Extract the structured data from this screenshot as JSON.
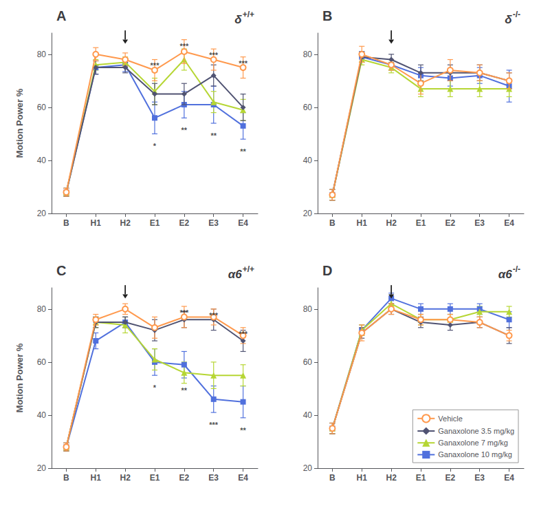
{
  "chart_data": [
    {
      "type": "line",
      "panel_label": "A",
      "title": "δ",
      "subtitle": "+/+",
      "categories": [
        "B",
        "H1",
        "H2",
        "E1",
        "E2",
        "E3",
        "E4"
      ],
      "ylim": [
        20,
        88
      ],
      "yticks": [
        20,
        40,
        60,
        80
      ],
      "ylabel": "Motion Power %",
      "grid": false,
      "series": [
        {
          "name": "Ganaxolone 10 mg/kg",
          "marker": "square",
          "values": [
            28,
            75,
            76,
            56,
            61,
            61,
            53
          ],
          "yerr": [
            1.5,
            2.5,
            2.5,
            6,
            5,
            7,
            5
          ]
        },
        {
          "name": "Ganaxolone 7 mg/kg",
          "marker": "triangle",
          "values": [
            28,
            76,
            77,
            66,
            78,
            62,
            59
          ],
          "yerr": [
            1.5,
            2,
            2,
            5,
            4,
            4,
            4
          ]
        },
        {
          "name": "Ganaxolone 3.5 mg/kg",
          "marker": "diamond",
          "values": [
            28,
            75,
            75,
            65,
            65,
            72,
            60
          ],
          "yerr": [
            1.5,
            2.5,
            2,
            4,
            4,
            4,
            5
          ]
        },
        {
          "name": "Vehicle",
          "marker": "open_circle",
          "values": [
            28,
            80,
            78,
            74,
            81,
            78,
            75
          ],
          "yerr": [
            1.5,
            2.5,
            2.5,
            4,
            4.5,
            4,
            4
          ]
        }
      ],
      "annotations": [
        {
          "text": "*",
          "x": "E1",
          "y": 47,
          "position": "below"
        },
        {
          "text": "**",
          "x": "E2",
          "y": 53,
          "position": "below"
        },
        {
          "text": "**",
          "x": "E3",
          "y": 51,
          "position": "below"
        },
        {
          "text": "**",
          "x": "E4",
          "y": 45,
          "position": "below"
        },
        {
          "text": "***",
          "x": "E1",
          "y": 74,
          "position": "above"
        },
        {
          "text": "***",
          "x": "E2",
          "y": 81.5,
          "position": "above"
        },
        {
          "text": "***",
          "x": "E3",
          "y": 78,
          "position": "above"
        },
        {
          "text": "***",
          "x": "E4",
          "y": 75,
          "position": "above"
        }
      ],
      "arrow": {
        "x": "H2",
        "from": 89,
        "to": 84
      }
    },
    {
      "type": "line",
      "panel_label": "B",
      "title": "δ",
      "subtitle": "-/-",
      "categories": [
        "B",
        "H1",
        "H2",
        "E1",
        "E2",
        "E3",
        "E4"
      ],
      "ylim": [
        20,
        88
      ],
      "yticks": [
        20,
        40,
        60,
        80
      ],
      "grid": false,
      "series": [
        {
          "name": "Ganaxolone 10 mg/kg",
          "marker": "square",
          "values": [
            27,
            79,
            76,
            72,
            71,
            72,
            68
          ],
          "yerr": [
            2,
            2,
            2,
            3,
            3,
            3,
            6
          ]
        },
        {
          "name": "Ganaxolone 7 mg/kg",
          "marker": "triangle",
          "values": [
            27,
            78,
            75,
            67,
            67,
            67,
            67
          ],
          "yerr": [
            2,
            2,
            2,
            3,
            3,
            3,
            3
          ]
        },
        {
          "name": "Ganaxolone 3.5 mg/kg",
          "marker": "diamond",
          "values": [
            27,
            79,
            78,
            73,
            73,
            73,
            70
          ],
          "yerr": [
            2,
            2,
            2,
            3,
            3,
            3,
            3
          ]
        },
        {
          "name": "Vehicle",
          "marker": "open_circle",
          "values": [
            27,
            80,
            76,
            69,
            74,
            73,
            70
          ],
          "yerr": [
            2,
            3,
            2,
            4,
            4,
            3,
            3
          ]
        }
      ],
      "annotations": [],
      "arrow": {
        "x": "H2",
        "from": 89,
        "to": 84
      }
    },
    {
      "type": "line",
      "panel_label": "C",
      "title": "α6",
      "subtitle": "+/+",
      "categories": [
        "B",
        "H1",
        "H2",
        "E1",
        "E2",
        "E3",
        "E4"
      ],
      "ylim": [
        20,
        88
      ],
      "yticks": [
        20,
        40,
        60,
        80
      ],
      "ylabel": "Motion Power %",
      "grid": false,
      "series": [
        {
          "name": "Ganaxolone 10 mg/kg",
          "marker": "square",
          "values": [
            28,
            68,
            75,
            60,
            59,
            46,
            45
          ],
          "yerr": [
            1.5,
            3,
            2,
            5,
            5,
            5,
            6
          ]
        },
        {
          "name": "Ganaxolone 7 mg/kg",
          "marker": "triangle",
          "values": [
            28,
            75,
            74,
            61,
            56,
            55,
            55
          ],
          "yerr": [
            1.5,
            2,
            3,
            4,
            4,
            5,
            4
          ]
        },
        {
          "name": "Ganaxolone 3.5 mg/kg",
          "marker": "diamond",
          "values": [
            28,
            75,
            75,
            72,
            76,
            76,
            68
          ],
          "yerr": [
            1.5,
            2,
            2,
            4,
            3,
            4,
            4
          ]
        },
        {
          "name": "Vehicle",
          "marker": "open_circle",
          "values": [
            28,
            76,
            80,
            73,
            77,
            77,
            70
          ],
          "yerr": [
            1.5,
            2,
            2,
            4,
            4,
            3,
            3
          ]
        }
      ],
      "annotations": [
        {
          "text": "*",
          "x": "E1",
          "y": 52,
          "position": "below"
        },
        {
          "text": "**",
          "x": "E2",
          "y": 51,
          "position": "below"
        },
        {
          "text": "***",
          "x": "E3",
          "y": 38,
          "position": "below"
        },
        {
          "text": "**",
          "x": "E4",
          "y": 36,
          "position": "below"
        },
        {
          "text": "***",
          "x": "E2",
          "y": 77,
          "position": "above"
        },
        {
          "text": "***",
          "x": "E3",
          "y": 76,
          "position": "above"
        },
        {
          "text": "***",
          "x": "E4",
          "y": 69,
          "position": "above"
        }
      ],
      "arrow": {
        "x": "H2",
        "from": 89,
        "to": 84
      }
    },
    {
      "type": "line",
      "panel_label": "D",
      "title": "α6",
      "subtitle": "-/-",
      "categories": [
        "B",
        "H1",
        "H2",
        "E1",
        "E2",
        "E3",
        "E4"
      ],
      "ylim": [
        20,
        88
      ],
      "yticks": [
        20,
        40,
        60,
        80
      ],
      "grid": false,
      "legend": "lower right",
      "series": [
        {
          "name": "Ganaxolone 10 mg/kg",
          "marker": "square",
          "values": [
            35,
            72,
            84,
            80,
            80,
            80,
            76
          ],
          "yerr": [
            2,
            2,
            2,
            2,
            2,
            2,
            3
          ]
        },
        {
          "name": "Ganaxolone 7 mg/kg",
          "marker": "triangle",
          "values": [
            35,
            72,
            82,
            76,
            76,
            79,
            79
          ],
          "yerr": [
            2,
            2,
            2,
            2,
            2,
            2,
            2
          ]
        },
        {
          "name": "Ganaxolone 3.5 mg/kg",
          "marker": "diamond",
          "values": [
            35,
            71,
            80,
            75,
            74,
            75,
            70
          ],
          "yerr": [
            2,
            2,
            2,
            2,
            2,
            2,
            3
          ]
        },
        {
          "name": "Vehicle",
          "marker": "open_circle",
          "values": [
            35,
            71,
            80,
            76,
            76,
            75,
            70
          ],
          "yerr": [
            2,
            3,
            2,
            2,
            2,
            2,
            2
          ]
        }
      ],
      "annotations": [],
      "arrow": {
        "x": "H2",
        "from": 89,
        "to": 84
      }
    }
  ]
}
